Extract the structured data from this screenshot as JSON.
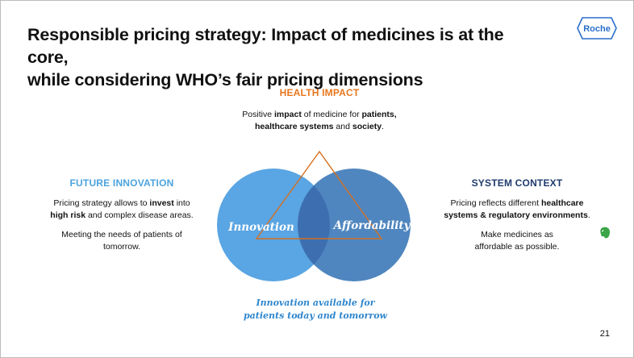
{
  "title_line1": "Responsible pricing strategy: Impact of medicines is at the core,",
  "title_line2": "while considering WHO’s fair pricing dimensions",
  "logo_text": "Roche",
  "health_impact": {
    "heading": "HEALTH IMPACT",
    "t1": "Positive ",
    "b1": "impact",
    "t2": " of medicine for ",
    "b2": "patients,",
    "b3": "healthcare systems",
    "t3": " and ",
    "b4": "society",
    "t4": "."
  },
  "future_innovation": {
    "heading": "FUTURE INNOVATION",
    "t1": "Pricing strategy allows to ",
    "b1": "invest",
    "t2": " into",
    "b2": "high risk",
    "t3": " and complex disease areas.",
    "p2": "Meeting the needs of patients of tomorrow."
  },
  "system_context": {
    "heading": "SYSTEM CONTEXT",
    "t1": "Pricing reflects different ",
    "b1": "healthcare",
    "b2": "systems & regulatory environments",
    "t2": ".",
    "p2": "Make medicines as affordable as possible."
  },
  "diagram": {
    "left_label": "Innovation",
    "right_label": "Affordability",
    "colors": {
      "left_circle": "#5aa5e3",
      "right_circle": "#4f86bf",
      "overlap": "#3d6fb0",
      "triangle": "#e8771e"
    }
  },
  "caption_line1": "Innovation available for",
  "caption_line2": "patients today and tomorrow",
  "page_number": "21",
  "icons": {
    "logo": "roche-hexagon-logo",
    "side": "evernote-elephant-icon"
  }
}
